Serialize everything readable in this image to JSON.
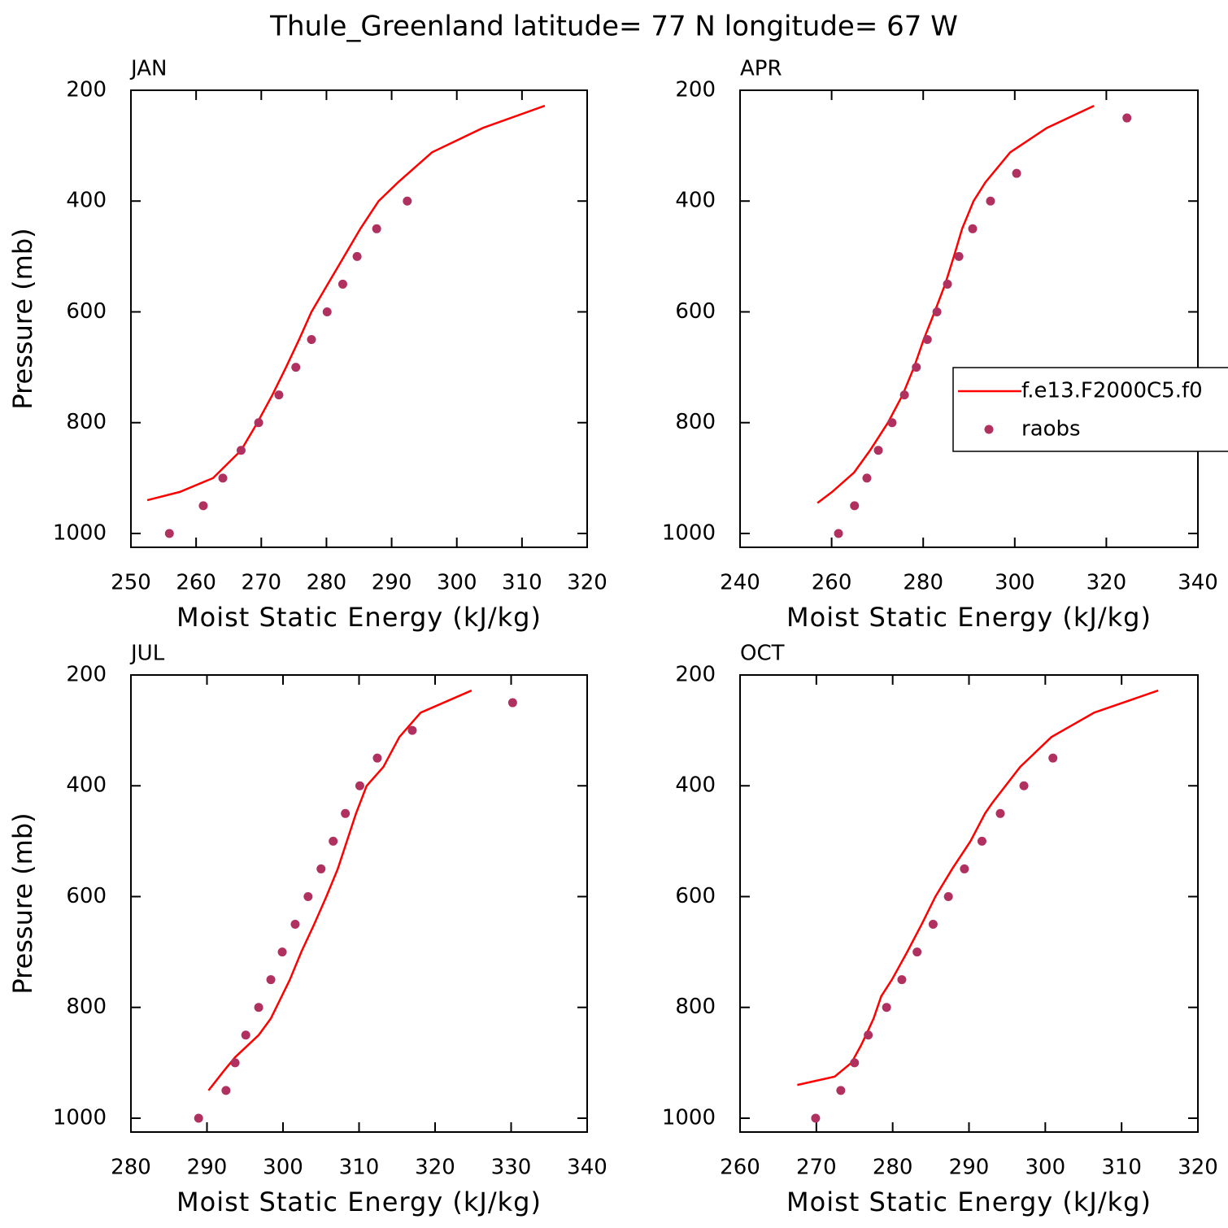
{
  "title": "Thule_Greenland  latitude= 77 N longitude= 67 W",
  "chart_data": [
    {
      "type": "line",
      "title": "JAN",
      "xlabel": "Moist Static Energy (kJ/kg)",
      "ylabel": "Pressure (mb)",
      "xlim": [
        250,
        320
      ],
      "xticks": [
        250,
        260,
        270,
        280,
        290,
        300,
        310,
        320
      ],
      "ylim": [
        1025,
        200
      ],
      "yticks": [
        200,
        400,
        600,
        800,
        1000
      ],
      "series": [
        {
          "color": "#ff0000",
          "marker": "line",
          "x": [
            252.5,
            257.5,
            262.6,
            266.9,
            269.4,
            271.7,
            273.8,
            275.8,
            277.7,
            280.2,
            282.7,
            285.2,
            288.0,
            291.0,
            296.2,
            304.0,
            313.5
          ],
          "y": [
            940,
            925,
            900,
            850,
            800,
            750,
            700,
            650,
            600,
            550,
            500,
            450,
            400,
            366,
            312,
            268,
            228
          ]
        },
        {
          "color": "#b03060",
          "marker": "dot",
          "x": [
            255.9,
            261.1,
            264.1,
            266.9,
            269.6,
            272.7,
            275.3,
            277.7,
            280.1,
            282.5,
            284.7,
            287.7,
            292.4
          ],
          "y": [
            1000,
            950,
            900,
            850,
            800,
            750,
            700,
            650,
            600,
            550,
            500,
            450,
            400
          ]
        }
      ]
    },
    {
      "type": "line",
      "title": "APR",
      "xlabel": "Moist Static Energy (kJ/kg)",
      "xlim": [
        240,
        340
      ],
      "xticks": [
        240,
        260,
        280,
        300,
        320,
        340
      ],
      "ylim": [
        1025,
        200
      ],
      "yticks": [
        200,
        400,
        600,
        800,
        1000
      ],
      "legend": true,
      "series": [
        {
          "name": "f.e13.F2000C5.f0",
          "color": "#ff0000",
          "marker": "line",
          "x": [
            256.9,
            260.1,
            264.9,
            268.4,
            272.3,
            275.5,
            278.0,
            280.1,
            282.5,
            284.8,
            286.7,
            288.5,
            291.0,
            293.6,
            299.0,
            307.0,
            317.3
          ],
          "y": [
            945,
            925,
            890,
            850,
            800,
            750,
            700,
            650,
            600,
            550,
            500,
            450,
            400,
            366,
            312,
            268,
            228
          ]
        },
        {
          "name": "raobs",
          "color": "#b03060",
          "marker": "dot",
          "x": [
            261.5,
            265.0,
            267.7,
            270.2,
            273.2,
            275.9,
            278.5,
            280.9,
            283.0,
            285.3,
            287.8,
            290.8,
            294.7,
            300.4,
            324.5
          ],
          "y": [
            1000,
            950,
            900,
            850,
            800,
            750,
            700,
            650,
            600,
            550,
            500,
            450,
            400,
            350,
            250
          ]
        }
      ]
    },
    {
      "type": "line",
      "title": "JUL",
      "xlabel": "Moist Static Energy (kJ/kg)",
      "ylabel": "Pressure (mb)",
      "xlim": [
        280,
        340
      ],
      "xticks": [
        280,
        290,
        300,
        310,
        320,
        330,
        340
      ],
      "ylim": [
        1025,
        200
      ],
      "yticks": [
        200,
        400,
        600,
        800,
        1000
      ],
      "series": [
        {
          "color": "#ff0000",
          "marker": "line",
          "x": [
            290.2,
            292.2,
            293.7,
            296.8,
            298.4,
            300.9,
            302.4,
            304.1,
            305.7,
            307.2,
            308.4,
            309.6,
            311.0,
            313.2,
            315.3,
            318.1,
            324.8
          ],
          "y": [
            950,
            915,
            890,
            850,
            820,
            750,
            700,
            650,
            600,
            550,
            500,
            450,
            400,
            366,
            312,
            268,
            228
          ]
        },
        {
          "color": "#b03060",
          "marker": "dot",
          "x": [
            288.9,
            292.5,
            293.7,
            295.1,
            296.8,
            298.4,
            299.9,
            301.6,
            303.3,
            305.0,
            306.6,
            308.2,
            310.1,
            312.4,
            317.0,
            330.2
          ],
          "y": [
            1000,
            950,
            900,
            850,
            800,
            750,
            700,
            650,
            600,
            550,
            500,
            450,
            400,
            350,
            300,
            250
          ]
        }
      ]
    },
    {
      "type": "line",
      "title": "OCT",
      "xlabel": "Moist Static Energy (kJ/kg)",
      "xlim": [
        260,
        320
      ],
      "xticks": [
        260,
        270,
        280,
        290,
        300,
        310,
        320
      ],
      "ylim": [
        1025,
        200
      ],
      "yticks": [
        200,
        400,
        600,
        800,
        1000
      ],
      "series": [
        {
          "color": "#ff0000",
          "marker": "line",
          "x": [
            267.5,
            272.4,
            274.6,
            275.8,
            276.5,
            277.5,
            278.5,
            279.9,
            281.9,
            283.8,
            285.6,
            287.8,
            290.2,
            292.1,
            293.1,
            296.7,
            300.8,
            306.4,
            314.8
          ],
          "y": [
            940,
            925,
            900,
            870,
            850,
            820,
            780,
            750,
            700,
            650,
            600,
            550,
            500,
            450,
            430,
            366,
            312,
            268,
            228
          ]
        },
        {
          "color": "#b03060",
          "marker": "dot",
          "x": [
            269.9,
            273.2,
            275.0,
            276.8,
            279.2,
            281.2,
            283.2,
            285.3,
            287.3,
            289.4,
            291.7,
            294.1,
            297.2,
            301.0
          ],
          "y": [
            1000,
            950,
            900,
            850,
            800,
            750,
            700,
            650,
            600,
            550,
            500,
            450,
            400,
            350
          ]
        }
      ]
    }
  ]
}
